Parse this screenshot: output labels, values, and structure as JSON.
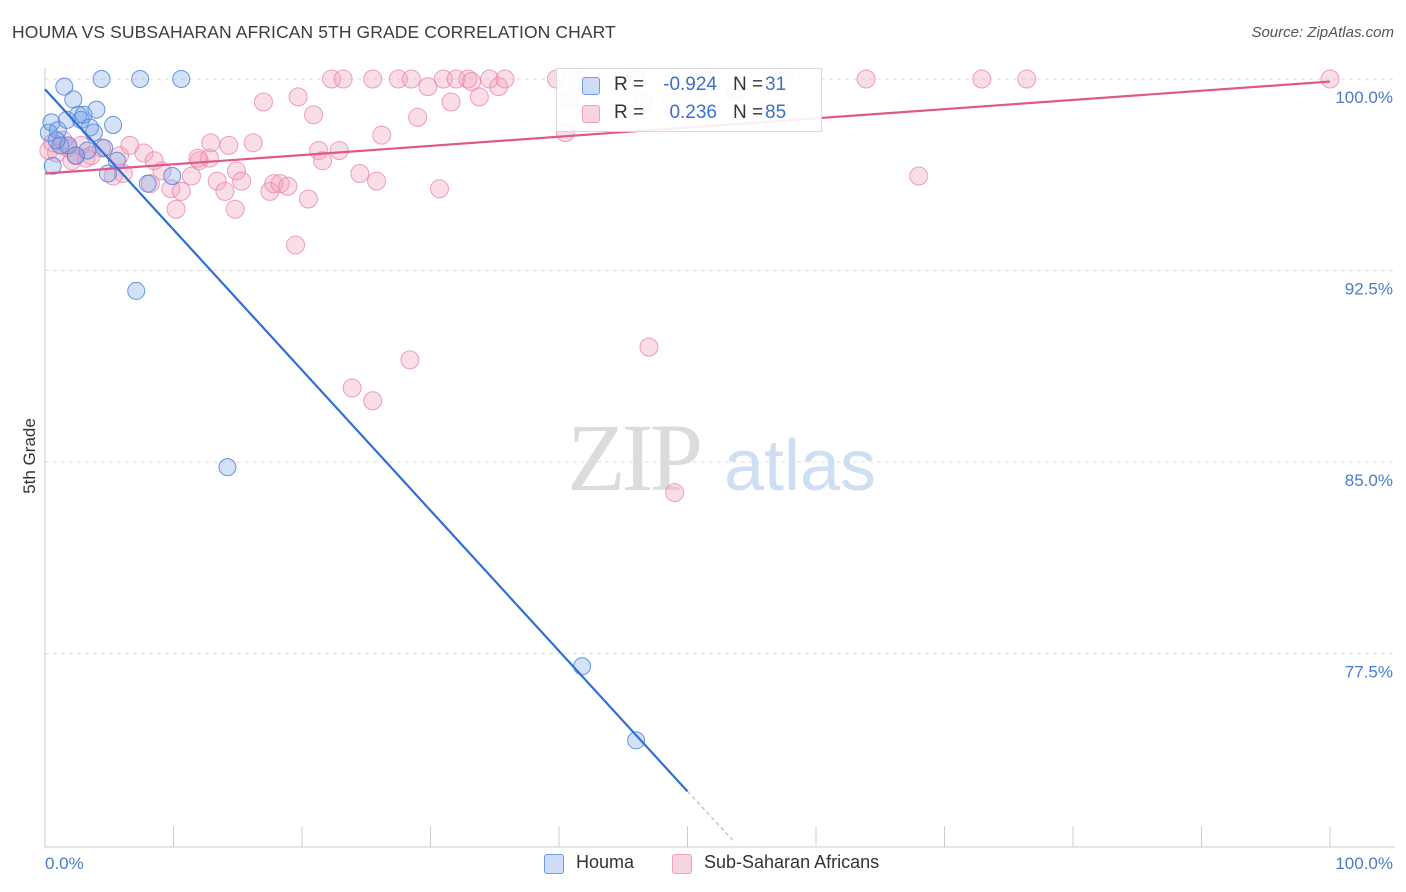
{
  "header": {
    "title": "HOUMA VS SUBSAHARAN AFRICAN 5TH GRADE CORRELATION CHART",
    "source": "Source: ZipAtlas.com"
  },
  "watermark": {
    "zip": "ZIP",
    "atlas": "atlas"
  },
  "legend": {
    "series": [
      {
        "name": "Houma",
        "r_label": "R =",
        "r_value": "-0.924",
        "n_label": "N =",
        "n_value": "31",
        "color": "#6f9ee8"
      },
      {
        "name": "Sub-Saharan Africans",
        "r_label": "R =",
        "r_value": "0.236",
        "n_label": "N =",
        "n_value": "85",
        "color": "#f0a0bb"
      }
    ]
  },
  "chart_data": {
    "type": "scatter",
    "title": "HOUMA VS SUBSAHARAN AFRICAN 5TH GRADE CORRELATION CHART",
    "xlabel": "",
    "ylabel": "5th Grade",
    "xlim": [
      0,
      100
    ],
    "ylim": [
      71,
      100.8
    ],
    "x_tick_labels": [
      "0.0%",
      "100.0%"
    ],
    "y_ticks": [
      77.5,
      85.0,
      92.5,
      100.0
    ],
    "y_tick_labels": [
      "77.5%",
      "85.0%",
      "92.5%",
      "100.0%"
    ],
    "grid": true,
    "legend_position": "top-center",
    "series": [
      {
        "name": "Houma",
        "color": "#6f9ee8",
        "line_color": "#2f6fd6",
        "trend": {
          "x": [
            0,
            50
          ],
          "y": [
            99.6,
            72.1
          ],
          "dashed_to": [
            53.5,
            70.2
          ]
        },
        "points": [
          [
            0.3,
            97.9
          ],
          [
            0.5,
            98.3
          ],
          [
            0.6,
            96.6
          ],
          [
            1.0,
            98.0
          ],
          [
            1.2,
            97.4
          ],
          [
            1.5,
            99.7
          ],
          [
            1.7,
            98.4
          ],
          [
            1.8,
            97.4
          ],
          [
            2.2,
            99.2
          ],
          [
            2.4,
            97.0
          ],
          [
            2.6,
            98.6
          ],
          [
            2.8,
            98.4
          ],
          [
            3.0,
            98.6
          ],
          [
            3.3,
            97.2
          ],
          [
            3.5,
            98.1
          ],
          [
            3.8,
            97.9
          ],
          [
            4.0,
            98.8
          ],
          [
            4.4,
            100.0
          ],
          [
            4.6,
            97.3
          ],
          [
            4.9,
            96.3
          ],
          [
            5.3,
            98.2
          ],
          [
            5.6,
            96.8
          ],
          [
            7.4,
            100.0
          ],
          [
            8.0,
            95.9
          ],
          [
            9.9,
            96.2
          ],
          [
            10.6,
            100.0
          ],
          [
            7.1,
            91.7
          ],
          [
            14.2,
            84.8
          ],
          [
            41.8,
            77.0
          ],
          [
            46.0,
            74.1
          ],
          [
            0.9,
            97.6
          ]
        ]
      },
      {
        "name": "Sub-Saharan Africans",
        "color": "#f0a0bb",
        "line_color": "#e0588a",
        "trend": {
          "x": [
            0,
            100
          ],
          "y": [
            96.3,
            99.9
          ]
        },
        "points": [
          [
            0.3,
            97.2
          ],
          [
            0.6,
            97.5
          ],
          [
            0.9,
            97.1
          ],
          [
            1.4,
            97.6
          ],
          [
            1.8,
            97.3
          ],
          [
            2.1,
            96.8
          ],
          [
            2.4,
            97.0
          ],
          [
            2.8,
            97.4
          ],
          [
            3.2,
            96.9
          ],
          [
            3.6,
            97.0
          ],
          [
            4.4,
            97.3
          ],
          [
            5.3,
            96.2
          ],
          [
            5.8,
            97.0
          ],
          [
            6.1,
            96.3
          ],
          [
            6.6,
            97.4
          ],
          [
            7.7,
            97.1
          ],
          [
            8.2,
            95.9
          ],
          [
            8.5,
            96.8
          ],
          [
            9.1,
            96.4
          ],
          [
            9.8,
            95.7
          ],
          [
            10.2,
            94.9
          ],
          [
            10.6,
            95.6
          ],
          [
            11.4,
            96.2
          ],
          [
            12.0,
            96.8
          ],
          [
            12.8,
            96.9
          ],
          [
            12.9,
            97.5
          ],
          [
            13.4,
            96.0
          ],
          [
            14.0,
            95.6
          ],
          [
            14.3,
            97.4
          ],
          [
            14.8,
            94.9
          ],
          [
            14.9,
            96.4
          ],
          [
            15.3,
            96.0
          ],
          [
            16.2,
            97.5
          ],
          [
            17.0,
            99.1
          ],
          [
            17.5,
            95.6
          ],
          [
            17.8,
            95.9
          ],
          [
            18.3,
            95.9
          ],
          [
            18.9,
            95.8
          ],
          [
            19.5,
            93.5
          ],
          [
            19.7,
            99.3
          ],
          [
            20.5,
            95.3
          ],
          [
            20.9,
            98.6
          ],
          [
            21.3,
            97.2
          ],
          [
            21.6,
            96.8
          ],
          [
            22.3,
            100.0
          ],
          [
            22.9,
            97.2
          ],
          [
            23.2,
            100.0
          ],
          [
            24.5,
            96.3
          ],
          [
            25.5,
            100.0
          ],
          [
            25.8,
            96.0
          ],
          [
            26.2,
            97.8
          ],
          [
            27.5,
            100.0
          ],
          [
            28.5,
            100.0
          ],
          [
            29.0,
            98.5
          ],
          [
            29.8,
            99.7
          ],
          [
            30.7,
            95.7
          ],
          [
            31.0,
            100.0
          ],
          [
            31.6,
            99.1
          ],
          [
            32.0,
            100.0
          ],
          [
            32.9,
            100.0
          ],
          [
            33.2,
            99.9
          ],
          [
            33.8,
            99.3
          ],
          [
            34.6,
            100.0
          ],
          [
            35.3,
            99.7
          ],
          [
            35.8,
            100.0
          ],
          [
            39.8,
            100.0
          ],
          [
            40.5,
            97.9
          ],
          [
            40.8,
            99.2
          ],
          [
            46.0,
            100.0
          ],
          [
            46.6,
            99.1
          ],
          [
            51.3,
            100.0
          ],
          [
            53.8,
            99.5
          ],
          [
            57.5,
            100.0
          ],
          [
            63.9,
            100.0
          ],
          [
            68.0,
            96.2
          ],
          [
            72.9,
            100.0
          ],
          [
            76.4,
            100.0
          ],
          [
            100.0,
            100.0
          ],
          [
            11.9,
            96.9
          ],
          [
            23.9,
            87.9
          ],
          [
            25.5,
            87.4
          ],
          [
            28.4,
            89.0
          ],
          [
            47.0,
            89.5
          ],
          [
            49.0,
            83.8
          ],
          [
            41.5,
            100.0
          ]
        ]
      }
    ]
  }
}
